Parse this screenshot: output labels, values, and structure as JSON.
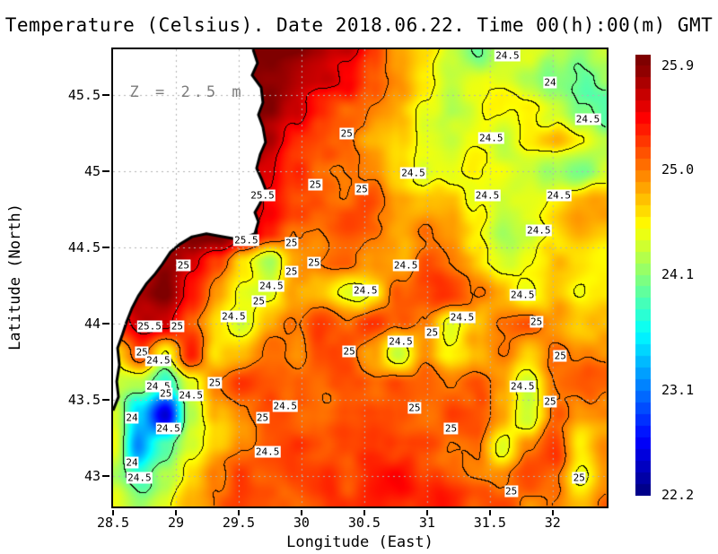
{
  "title": "Temperature (Celsius). Date 2018.06.22. Time 00(h):00(m) GMT",
  "annotation": "Z = 2.5 m",
  "axes": {
    "x": {
      "label": "Longitude (East)",
      "tick_labels": [
        "28.5",
        "29",
        "29.5",
        "30",
        "30.5",
        "31",
        "31.5",
        "32"
      ],
      "tick_values": [
        28.5,
        29,
        29.5,
        30,
        30.5,
        31,
        31.5,
        32
      ]
    },
    "y": {
      "label": "Latitude (North)",
      "tick_labels": [
        "45.5",
        "45",
        "44.5",
        "44",
        "43.5",
        "43"
      ],
      "tick_values": [
        45.5,
        45,
        44.5,
        44,
        43.5,
        43
      ]
    }
  },
  "colorbar": {
    "tick_labels": [
      "25.9",
      "25.0",
      "24.1",
      "23.1",
      "22.2"
    ],
    "tick_values": [
      25.9,
      25.0,
      24.1,
      23.1,
      22.2
    ],
    "value_min": 22.19,
    "value_max": 25.99,
    "colormap": "jet",
    "steps": 38
  },
  "colors": {
    "background": "#ffffff",
    "land": "#ffffff",
    "coastline": "#000000",
    "gridline": "#b4b4b4",
    "contour_line": "#000000",
    "annotation": "#7d7d7d",
    "label_bg": "#ffffff",
    "text": "#000000"
  },
  "chart_data": {
    "type": "heatmap",
    "title": "Temperature (Celsius). Date 2018.06.22. Time 00(h):00(m) GMT",
    "xlabel": "Longitude (East)",
    "ylabel": "Latitude (North)",
    "units": "Celsius",
    "depth_annotation": "Z = 2.5 m",
    "lon_range": [
      28.5,
      32.43
    ],
    "lat_range": [
      42.8,
      45.8
    ],
    "scale_min": 22.2,
    "scale_max": 25.9,
    "contour_levels": [
      24,
      24.5,
      25,
      25.5
    ],
    "grid": {
      "ncols": 20,
      "nrows": 16,
      "lon_start": 28.5,
      "lon_end": 32.43,
      "lat_start": 45.8,
      "lat_end": 42.8,
      "values": [
        [
          25.9,
          25.9,
          25.9,
          25.9,
          25.9,
          25.8,
          25.8,
          25.8,
          25.7,
          25.6,
          25.2,
          24.9,
          24.7,
          24.4,
          24.0,
          24.4,
          24.6,
          24.2,
          24.1,
          24.4
        ],
        [
          25.9,
          25.9,
          25.9,
          25.9,
          25.9,
          25.9,
          25.8,
          25.7,
          25.6,
          25.4,
          25.0,
          24.8,
          24.5,
          24.2,
          24.3,
          24.4,
          24.2,
          24.0,
          23.9,
          24.2
        ],
        [
          25.9,
          25.9,
          25.9,
          25.9,
          25.9,
          25.8,
          25.8,
          25.6,
          25.2,
          25.0,
          24.9,
          24.7,
          24.4,
          24.2,
          24.3,
          24.5,
          24.6,
          24.3,
          24.0,
          23.9
        ],
        [
          25.9,
          25.9,
          25.9,
          25.9,
          25.9,
          25.9,
          25.7,
          25.3,
          25.1,
          25.0,
          24.8,
          24.6,
          24.4,
          24.3,
          24.4,
          24.3,
          24.7,
          24.7,
          24.4,
          24.2
        ],
        [
          25.9,
          25.9,
          25.9,
          25.9,
          26.0,
          25.8,
          25.6,
          25.4,
          25.2,
          25.0,
          24.9,
          24.7,
          24.4,
          24.4,
          24.5,
          24.4,
          24.3,
          24.2,
          24.0,
          24.2
        ],
        [
          25.9,
          25.9,
          25.9,
          25.9,
          26.0,
          25.9,
          25.5,
          25.2,
          25.1,
          25.0,
          25.1,
          24.9,
          24.7,
          24.7,
          24.4,
          24.3,
          24.4,
          24.5,
          24.7,
          24.8
        ],
        [
          25.9,
          25.8,
          25.9,
          26.0,
          26.0,
          25.8,
          25.4,
          25.1,
          25.0,
          25.1,
          25.0,
          24.9,
          25.0,
          24.8,
          24.5,
          24.2,
          24.4,
          24.6,
          24.8,
          24.7
        ],
        [
          25.7,
          25.8,
          25.9,
          25.6,
          25.2,
          24.6,
          24.3,
          24.9,
          25.1,
          25.2,
          25.0,
          24.9,
          25.1,
          24.9,
          24.7,
          24.4,
          24.6,
          24.8,
          24.7,
          24.6
        ],
        [
          25.4,
          25.6,
          25.8,
          25.4,
          24.9,
          24.5,
          24.4,
          24.8,
          24.6,
          24.4,
          24.6,
          25.0,
          25.1,
          25.2,
          25.0,
          24.8,
          24.5,
          24.7,
          24.4,
          24.6
        ],
        [
          25.3,
          25.6,
          25.5,
          25.1,
          24.6,
          24.4,
          24.7,
          24.9,
          25.1,
          25.0,
          25.2,
          25.1,
          24.9,
          24.3,
          24.7,
          25.0,
          25.1,
          24.9,
          24.7,
          24.8
        ],
        [
          24.6,
          25.2,
          24.4,
          25.3,
          24.6,
          24.8,
          25.0,
          24.8,
          25.0,
          25.1,
          24.8,
          24.4,
          24.9,
          24.4,
          24.8,
          25.0,
          24.6,
          25.1,
          25.0,
          24.9
        ],
        [
          24.4,
          24.2,
          23.6,
          24.4,
          25.0,
          25.2,
          25.1,
          25.0,
          24.9,
          25.1,
          25.0,
          25.2,
          25.1,
          25.0,
          25.2,
          24.9,
          24.4,
          25.0,
          25.1,
          25.0
        ],
        [
          24.4,
          23.4,
          22.5,
          24.2,
          24.8,
          25.0,
          25.2,
          25.1,
          25.0,
          25.2,
          25.3,
          25.1,
          25.0,
          25.2,
          25.1,
          24.9,
          24.4,
          25.1,
          24.9,
          25.0
        ],
        [
          24.6,
          23.2,
          23.9,
          24.4,
          24.7,
          24.9,
          25.1,
          25.2,
          25.1,
          25.3,
          25.4,
          25.2,
          25.3,
          25.1,
          25.2,
          24.4,
          25.0,
          25.2,
          24.5,
          25.0
        ],
        [
          24.3,
          23.8,
          24.2,
          24.6,
          24.9,
          25.1,
          25.0,
          25.2,
          25.3,
          25.2,
          25.4,
          25.5,
          25.3,
          25.2,
          25.1,
          25.0,
          25.2,
          25.0,
          24.4,
          24.9
        ],
        [
          24.6,
          24.2,
          24.5,
          24.8,
          25.0,
          25.1,
          25.2,
          25.1,
          25.2,
          25.3,
          25.4,
          25.3,
          25.2,
          25.3,
          25.1,
          25.2,
          25.0,
          25.1,
          24.8,
          25.0
        ]
      ]
    },
    "contour_labels": [
      {
        "v": "24.5",
        "lon": 31.64,
        "lat": 45.76
      },
      {
        "v": "24",
        "lon": 31.98,
        "lat": 45.58
      },
      {
        "v": "24.5",
        "lon": 32.28,
        "lat": 45.34
      },
      {
        "v": "25",
        "lon": 30.36,
        "lat": 45.25
      },
      {
        "v": "24.5",
        "lon": 31.51,
        "lat": 45.22
      },
      {
        "v": "25.5",
        "lon": 29.69,
        "lat": 44.84
      },
      {
        "v": "25",
        "lon": 30.11,
        "lat": 44.91
      },
      {
        "v": "25",
        "lon": 30.48,
        "lat": 44.88
      },
      {
        "v": "24.5",
        "lon": 30.89,
        "lat": 44.99
      },
      {
        "v": "24.5",
        "lon": 31.48,
        "lat": 44.84
      },
      {
        "v": "24.5",
        "lon": 32.05,
        "lat": 44.84
      },
      {
        "v": "24.5",
        "lon": 31.89,
        "lat": 44.61
      },
      {
        "v": "25.5",
        "lon": 29.56,
        "lat": 44.55
      },
      {
        "v": "25",
        "lon": 29.92,
        "lat": 44.53
      },
      {
        "v": "25",
        "lon": 29.92,
        "lat": 44.34
      },
      {
        "v": "24.5",
        "lon": 29.76,
        "lat": 44.25
      },
      {
        "v": "25",
        "lon": 29.66,
        "lat": 44.15
      },
      {
        "v": "24.5",
        "lon": 29.46,
        "lat": 44.05
      },
      {
        "v": "25.5",
        "lon": 28.79,
        "lat": 43.98
      },
      {
        "v": "25",
        "lon": 29.01,
        "lat": 43.98
      },
      {
        "v": "25",
        "lon": 28.73,
        "lat": 43.81
      },
      {
        "v": "24.5",
        "lon": 28.86,
        "lat": 43.76
      },
      {
        "v": "25",
        "lon": 30.1,
        "lat": 44.4
      },
      {
        "v": "24.5",
        "lon": 28.86,
        "lat": 43.59
      },
      {
        "v": "25",
        "lon": 28.92,
        "lat": 43.54
      },
      {
        "v": "25",
        "lon": 29.31,
        "lat": 43.61
      },
      {
        "v": "24",
        "lon": 28.65,
        "lat": 43.38
      },
      {
        "v": "24.5",
        "lon": 28.94,
        "lat": 43.31
      },
      {
        "v": "25",
        "lon": 29.69,
        "lat": 43.38
      },
      {
        "v": "24",
        "lon": 28.65,
        "lat": 43.09
      },
      {
        "v": "24.5",
        "lon": 28.71,
        "lat": 42.99
      },
      {
        "v": "24.5",
        "lon": 31.76,
        "lat": 44.19
      },
      {
        "v": "25",
        "lon": 31.87,
        "lat": 44.01
      },
      {
        "v": "24.5",
        "lon": 31.28,
        "lat": 44.04
      },
      {
        "v": "25",
        "lon": 31.04,
        "lat": 43.94
      },
      {
        "v": "24.5",
        "lon": 30.79,
        "lat": 43.88
      },
      {
        "v": "25",
        "lon": 32.06,
        "lat": 43.79
      },
      {
        "v": "24.5",
        "lon": 31.76,
        "lat": 43.59
      },
      {
        "v": "25",
        "lon": 31.98,
        "lat": 43.49
      },
      {
        "v": "25",
        "lon": 30.9,
        "lat": 43.45
      },
      {
        "v": "25",
        "lon": 31.19,
        "lat": 43.31
      },
      {
        "v": "25",
        "lon": 31.67,
        "lat": 42.9
      },
      {
        "v": "25",
        "lon": 32.21,
        "lat": 42.99
      },
      {
        "v": "24.5",
        "lon": 29.73,
        "lat": 43.16
      },
      {
        "v": "24.5",
        "lon": 29.12,
        "lat": 43.53
      },
      {
        "v": "24.5",
        "lon": 29.87,
        "lat": 43.46
      },
      {
        "v": "25",
        "lon": 30.38,
        "lat": 43.82
      },
      {
        "v": "24.5",
        "lon": 30.51,
        "lat": 44.22
      },
      {
        "v": "24.5",
        "lon": 30.83,
        "lat": 44.38
      },
      {
        "v": "25",
        "lon": 29.06,
        "lat": 44.38
      }
    ],
    "coastline": [
      [
        29.614,
        45.8
      ],
      [
        29.65,
        45.71
      ],
      [
        29.607,
        45.63
      ],
      [
        29.679,
        45.55
      ],
      [
        29.693,
        45.45
      ],
      [
        29.657,
        45.37
      ],
      [
        29.693,
        45.29
      ],
      [
        29.714,
        45.19
      ],
      [
        29.671,
        45.11
      ],
      [
        29.643,
        45.02
      ],
      [
        29.686,
        44.94
      ],
      [
        29.714,
        44.88
      ],
      [
        29.671,
        44.79
      ],
      [
        29.629,
        44.73
      ],
      [
        29.657,
        44.67
      ],
      [
        29.629,
        44.59
      ],
      [
        29.514,
        44.55
      ],
      [
        29.371,
        44.57
      ],
      [
        29.243,
        44.59
      ],
      [
        29.129,
        44.57
      ],
      [
        29.029,
        44.52
      ],
      [
        28.957,
        44.47
      ],
      [
        28.893,
        44.39
      ],
      [
        28.829,
        44.32
      ],
      [
        28.764,
        44.26
      ],
      [
        28.7,
        44.18
      ],
      [
        28.65,
        44.1
      ],
      [
        28.607,
        44.01
      ],
      [
        28.571,
        43.92
      ],
      [
        28.536,
        43.84
      ],
      [
        28.55,
        43.73
      ],
      [
        28.529,
        43.62
      ],
      [
        28.543,
        43.52
      ],
      [
        28.5,
        43.43
      ]
    ],
    "annotation_pos": {
      "lon": 29.09,
      "lat": 45.52
    }
  }
}
